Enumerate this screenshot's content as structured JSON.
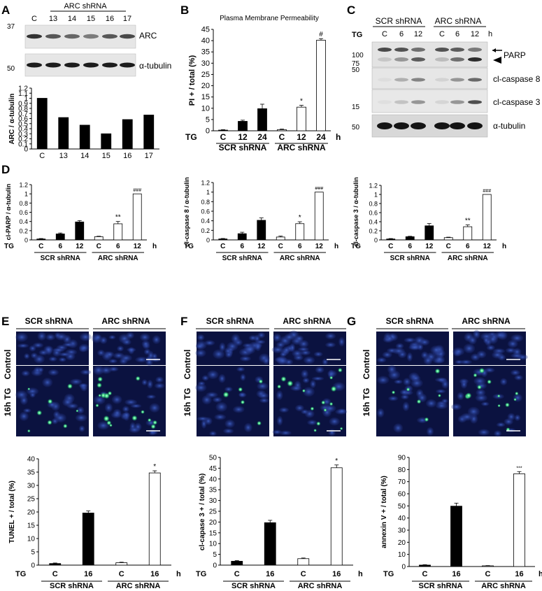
{
  "panels": {
    "A": {
      "letter": "A",
      "lanes": [
        "C",
        "13",
        "14",
        "15",
        "16",
        "17"
      ],
      "group_label": "ARC shRNA",
      "blots": [
        {
          "label": "ARC",
          "marker": "37",
          "intensity": [
            0.85,
            0.6,
            0.5,
            0.35,
            0.6,
            0.7
          ]
        },
        {
          "label": "α-tubulin",
          "marker": "50",
          "intensity": [
            1,
            1,
            1,
            1,
            1,
            1
          ]
        }
      ]
    },
    "B": {
      "letter": "B"
    },
    "C": {
      "letter": "C",
      "treat_label": "TG",
      "unit": "h",
      "groups": [
        "SCR shRNA",
        "ARC shRNA"
      ],
      "lanes": [
        "C",
        "6",
        "12",
        "C",
        "6",
        "12"
      ],
      "markers": [
        "100",
        "75",
        "50",
        "15",
        "50"
      ],
      "bands": [
        "PARP",
        "cl-caspase 8",
        "cl-caspase 3",
        "α-tubulin"
      ]
    },
    "D": {
      "letter": "D"
    },
    "E": {
      "letter": "E",
      "cols": [
        "SCR shRNA",
        "ARC shRNA"
      ],
      "rows": [
        "Control",
        "16h TG"
      ]
    },
    "F": {
      "letter": "F",
      "cols": [
        "SCR shRNA",
        "ARC shRNA"
      ],
      "rows": [
        "Control",
        "16h TG"
      ]
    },
    "G": {
      "letter": "G",
      "cols": [
        "SCR shRNA",
        "ARC shRNA"
      ],
      "rows": [
        "Control",
        "16h TG"
      ]
    }
  },
  "chart_data": [
    {
      "id": "A",
      "type": "bar",
      "categories": [
        "C",
        "13",
        "14",
        "15",
        "16",
        "17"
      ],
      "values": [
        1.0,
        0.62,
        0.47,
        0.3,
        0.58,
        0.67
      ],
      "ylabel": "ARC / α-tubulin",
      "ylim": [
        0,
        1.2
      ],
      "ystep": 0.1,
      "yticks": [
        "0",
        "0.1",
        "0.2",
        "0.3",
        "0.4",
        "0.5",
        "0.6",
        "0.7",
        "0.8",
        "0.9",
        "1",
        "1.1",
        "1.2"
      ],
      "fills": [
        "#000",
        "#000",
        "#000",
        "#000",
        "#000",
        "#000"
      ],
      "errors": [],
      "sig": []
    },
    {
      "id": "B",
      "type": "bar",
      "title": "Plasma Membrane Permeability",
      "categories": [
        "C",
        "12",
        "24",
        "C",
        "12",
        "24"
      ],
      "values": [
        0.3,
        4.2,
        9.8,
        0.5,
        10.5,
        40.2
      ],
      "errors": [
        0.2,
        0.5,
        2.0,
        0.3,
        0.8,
        0.7
      ],
      "sig": [
        "",
        "",
        "",
        "",
        "*",
        "#"
      ],
      "ylabel": "PI + / total (%)",
      "ylim": [
        0,
        45
      ],
      "ystep": 5,
      "yticks": [
        "0",
        "5",
        "10",
        "15",
        "20",
        "25",
        "30",
        "35",
        "40",
        "45"
      ],
      "xprefix": "TG",
      "xunit": "h",
      "groups": [
        "SCR shRNA",
        "ARC shRNA"
      ],
      "fills": [
        "#000",
        "#000",
        "#000",
        "#fff",
        "#fff",
        "#fff"
      ]
    },
    {
      "id": "D1",
      "type": "bar",
      "categories": [
        "C",
        "6",
        "12",
        "C",
        "6",
        "12"
      ],
      "values": [
        0.02,
        0.13,
        0.39,
        0.07,
        0.35,
        1.0
      ],
      "errors": [
        0.01,
        0.02,
        0.03,
        0.01,
        0.05,
        0.0
      ],
      "sig": [
        "",
        "",
        "",
        "",
        "**",
        "###"
      ],
      "ylabel": "cl-PARP / α-tubulin",
      "ylim": [
        0,
        1.2
      ],
      "ystep": 0.2,
      "yticks": [
        "0",
        "0.2",
        "0.4",
        "0.6",
        "0.8",
        "1",
        "1.2"
      ],
      "xprefix": "TG",
      "xunit": "h",
      "groups": [
        "SCR shRNA",
        "ARC shRNA"
      ],
      "fills": [
        "#000",
        "#000",
        "#000",
        "#fff",
        "#fff",
        "#fff"
      ]
    },
    {
      "id": "D2",
      "type": "bar",
      "categories": [
        "C",
        "6",
        "12",
        "C",
        "6",
        "12"
      ],
      "values": [
        0.02,
        0.13,
        0.41,
        0.06,
        0.34,
        1.0
      ],
      "errors": [
        0.01,
        0.03,
        0.05,
        0.02,
        0.04,
        0.0
      ],
      "sig": [
        "",
        "",
        "",
        "",
        "*",
        "###"
      ],
      "ylabel": "cl-caspase 8 / α-tubulin",
      "ylim": [
        0,
        1.2
      ],
      "ystep": 0.2,
      "yticks": [
        "0",
        "0.2",
        "0.4",
        "0.6",
        "0.8",
        "1",
        "1.2"
      ],
      "xprefix": "TG",
      "xunit": "h",
      "groups": [
        "SCR shRNA",
        "ARC shRNA"
      ],
      "fills": [
        "#000",
        "#000",
        "#000",
        "#fff",
        "#fff",
        "#fff"
      ]
    },
    {
      "id": "D3",
      "type": "bar",
      "categories": [
        "C",
        "6",
        "12",
        "C",
        "6",
        "12"
      ],
      "values": [
        0.02,
        0.07,
        0.31,
        0.05,
        0.29,
        1.0
      ],
      "errors": [
        0.01,
        0.01,
        0.05,
        0.01,
        0.04,
        0.0
      ],
      "sig": [
        "",
        "",
        "",
        "",
        "**",
        "###"
      ],
      "ylabel": "cl-caspase 3 / α-tubulin",
      "ylim": [
        0,
        1.2
      ],
      "ystep": 0.2,
      "yticks": [
        "0",
        "0.2",
        "0.4",
        "0.6",
        "0.8",
        "1",
        "1.2"
      ],
      "xprefix": "TG",
      "xunit": "h",
      "groups": [
        "SCR shRNA",
        "ARC shRNA"
      ],
      "fills": [
        "#000",
        "#000",
        "#000",
        "#fff",
        "#fff",
        "#fff"
      ]
    },
    {
      "id": "E",
      "type": "bar",
      "categories": [
        "C",
        "16",
        "C",
        "16"
      ],
      "values": [
        0.6,
        19.6,
        0.9,
        34.7
      ],
      "errors": [
        0.2,
        0.8,
        0.2,
        0.8
      ],
      "sig": [
        "",
        "",
        "",
        "*"
      ],
      "ylabel": "TUNEL + / total (%)",
      "ylim": [
        0,
        40
      ],
      "ystep": 5,
      "yticks": [
        "0",
        "5",
        "10",
        "15",
        "20",
        "25",
        "30",
        "35",
        "40"
      ],
      "xprefix": "TG",
      "xunit": "h",
      "groups": [
        "SCR shRNA",
        "ARC shRNA"
      ],
      "fills": [
        "#000",
        "#000",
        "#fff",
        "#fff"
      ]
    },
    {
      "id": "F",
      "type": "bar",
      "categories": [
        "C",
        "16",
        "C",
        "16"
      ],
      "values": [
        1.8,
        19.7,
        3.0,
        45.2
      ],
      "errors": [
        0.3,
        1.1,
        0.3,
        1.3
      ],
      "sig": [
        "",
        "",
        "",
        "*"
      ],
      "ylabel": "cl-capase 3 + / total (%)",
      "ylim": [
        0,
        50
      ],
      "ystep": 5,
      "yticks": [
        "0",
        "5",
        "10",
        "15",
        "20",
        "25",
        "30",
        "35",
        "40",
        "45",
        "50"
      ],
      "xprefix": "TG",
      "xunit": "h",
      "groups": [
        "SCR shRNA",
        "ARC shRNA"
      ],
      "fills": [
        "#000",
        "#000",
        "#fff",
        "#fff"
      ]
    },
    {
      "id": "G",
      "type": "bar",
      "categories": [
        "C",
        "16",
        "C",
        "16"
      ],
      "values": [
        1.2,
        49.8,
        0.6,
        76.5
      ],
      "errors": [
        0.3,
        2.5,
        0.2,
        1.8
      ],
      "sig": [
        "",
        "",
        "",
        "***"
      ],
      "ylabel": "annexin V + / total (%)",
      "ylim": [
        0,
        90
      ],
      "ystep": 10,
      "yticks": [
        "0",
        "10",
        "20",
        "30",
        "40",
        "50",
        "60",
        "70",
        "80",
        "90"
      ],
      "xprefix": "TG",
      "xunit": "h",
      "groups": [
        "SCR shRNA",
        "ARC shRNA"
      ],
      "fills": [
        "#000",
        "#000",
        "#fff",
        "#fff"
      ]
    }
  ]
}
